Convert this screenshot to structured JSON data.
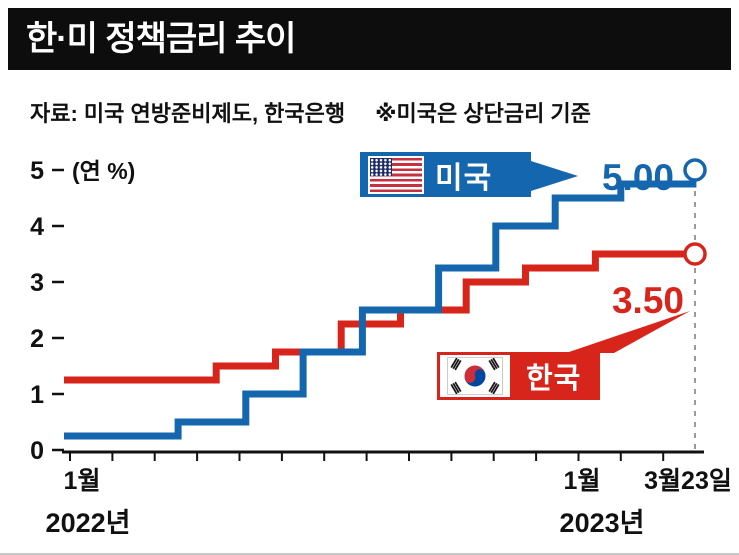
{
  "header": {
    "title": "한·미 정책금리 추이",
    "background": "#0d0d0d"
  },
  "source": {
    "label": "자료: 미국 연방준비제도, 한국은행",
    "note": "※미국은 상단금리 기준"
  },
  "icons": {
    "us_flag": "us-flag-icon",
    "korea_flag": "korea-flag-icon"
  },
  "chart_data": {
    "type": "line",
    "line_style": "step",
    "unit_label": "(연 %)",
    "ylim": [
      0,
      5
    ],
    "y_ticks": [
      5,
      4,
      3,
      2,
      1,
      0
    ],
    "x_end_month": 14.75,
    "x_tick_every_month": 1,
    "x_labels": [
      "1월",
      "1월",
      "3월23일"
    ],
    "year_labels": [
      "2022년",
      "2023년"
    ],
    "grid": false,
    "dashed_guide_at_end": true,
    "series": [
      {
        "name": "미국",
        "color": "#1467ae",
        "end_label": "5.00",
        "final_rate": 5.0,
        "points_month_rate": [
          [
            0,
            0.25
          ],
          [
            2.55,
            0.5
          ],
          [
            4.15,
            1.0
          ],
          [
            5.5,
            1.75
          ],
          [
            6.9,
            2.5
          ],
          [
            8.7,
            3.25
          ],
          [
            10.05,
            4.0
          ],
          [
            11.45,
            4.5
          ],
          [
            13.0,
            4.75
          ],
          [
            14.7,
            5.0
          ]
        ]
      },
      {
        "name": "한국",
        "color": "#d8251c",
        "end_label": "3.50",
        "final_rate": 3.5,
        "points_month_rate": [
          [
            0,
            1.25
          ],
          [
            3.45,
            1.5
          ],
          [
            4.85,
            1.75
          ],
          [
            6.4,
            2.25
          ],
          [
            7.8,
            2.5
          ],
          [
            9.35,
            3.0
          ],
          [
            10.75,
            3.25
          ],
          [
            12.4,
            3.5
          ]
        ]
      }
    ]
  }
}
